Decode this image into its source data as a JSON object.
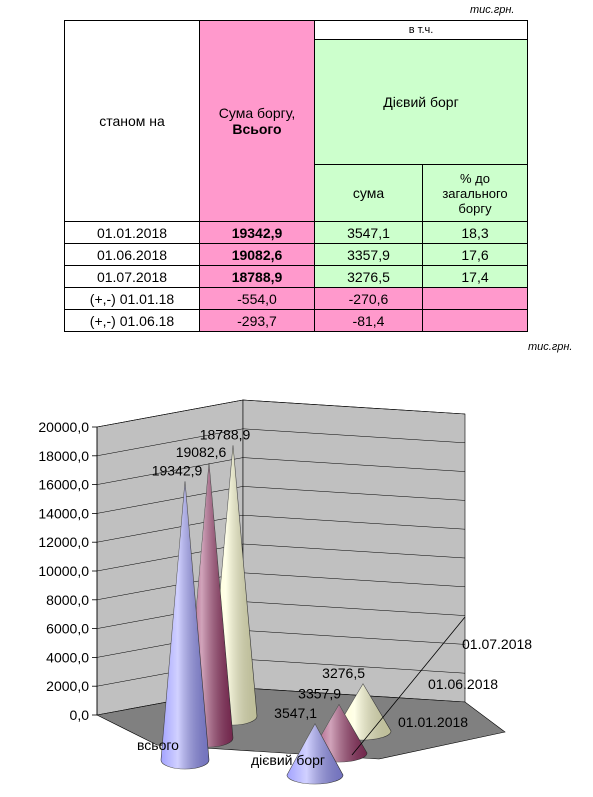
{
  "unit_top": "тис.грн.",
  "unit_bottom": "тис.грн.",
  "table": {
    "col_date": "станом на",
    "col_total_l1": "Сума боргу,",
    "col_total_l2": "Всього",
    "col_incl": "в т.ч.",
    "col_active": "Дієвий борг",
    "col_sum": "сума",
    "col_pct_l1": "% до",
    "col_pct_l2": "загального",
    "col_pct_l3": "боргу",
    "rows": [
      {
        "date": "01.01.2018",
        "total": "19342,9",
        "sum": "3547,1",
        "pct": "18,3"
      },
      {
        "date": "01.06.2018",
        "total": "19082,6",
        "sum": "3357,9",
        "pct": "17,6"
      },
      {
        "date": "01.07.2018",
        "total": "18788,9",
        "sum": "3276,5",
        "pct": "17,4"
      },
      {
        "date": "(+,-)  01.01.18",
        "total": "-554,0",
        "sum": "-270,6",
        "pct": ""
      },
      {
        "date": "(+,-)  01.06.18",
        "total": "-293,7",
        "sum": "-81,4",
        "pct": ""
      }
    ]
  },
  "chart_data": {
    "type": "bar",
    "subtype": "3d-cone",
    "categories": [
      "всього",
      "дієвий борг"
    ],
    "series": [
      {
        "name": "01.01.2018",
        "values": [
          19342.9,
          3547.1
        ],
        "labels": [
          "19342,9",
          "3547,1"
        ],
        "color": "#9999ff"
      },
      {
        "name": "01.06.2018",
        "values": [
          19082.6,
          3357.9
        ],
        "labels": [
          "19082,6",
          "3357,9"
        ],
        "color": "#993366"
      },
      {
        "name": "01.07.2018",
        "values": [
          18788.9,
          3276.5
        ],
        "labels": [
          "18788,9",
          "3276,5"
        ],
        "color": "#ffffcc"
      }
    ],
    "yticks": [
      "0,0",
      "2000,0",
      "4000,0",
      "6000,0",
      "8000,0",
      "10000,0",
      "12000,0",
      "14000,0",
      "16000,0",
      "18000,0",
      "20000,0"
    ],
    "ylim": [
      0,
      20000
    ],
    "grid": true,
    "wall_color": "#c0c0c0",
    "floor_color": "#808080"
  }
}
